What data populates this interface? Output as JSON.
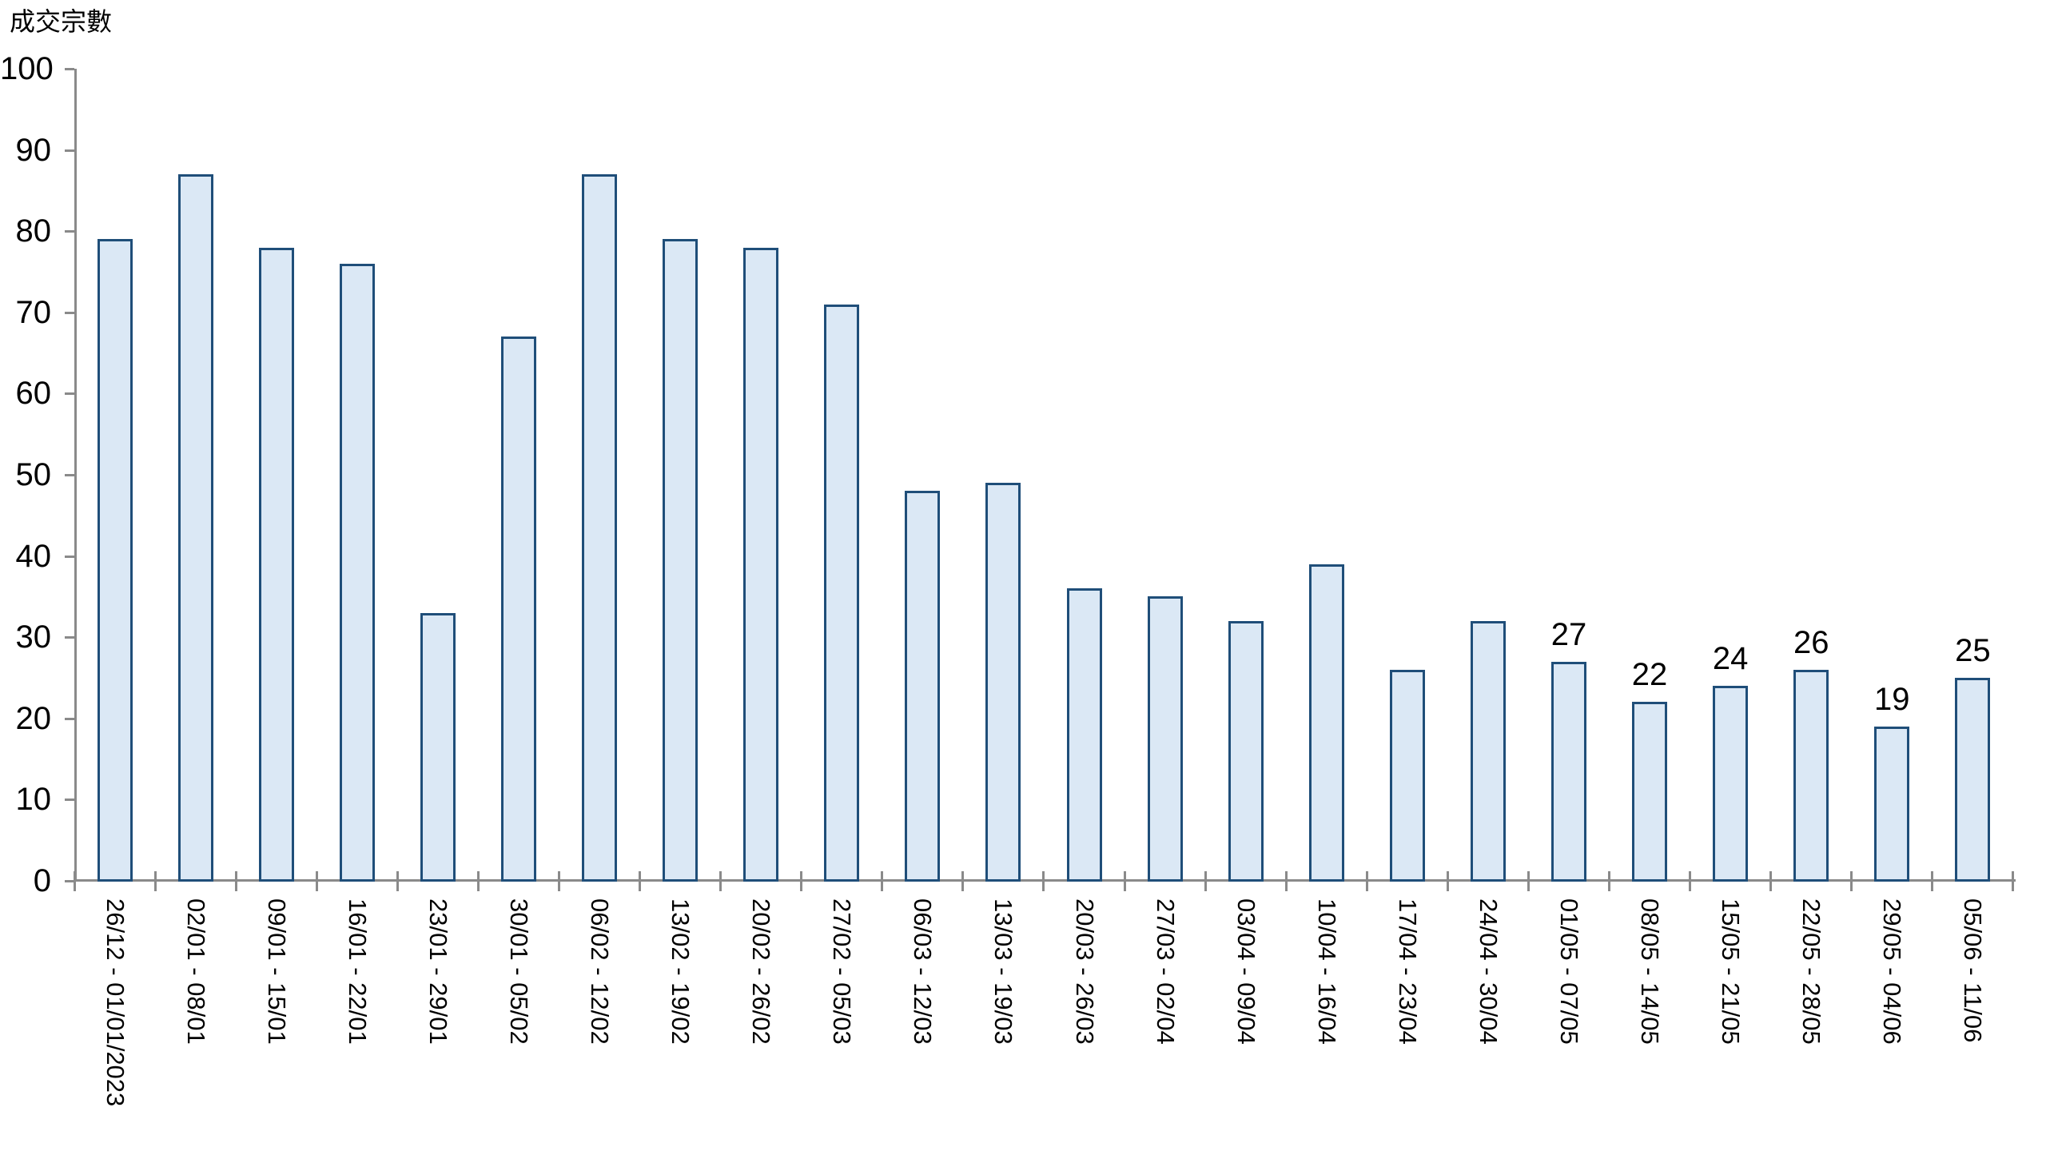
{
  "title": "成交宗數",
  "chart_data": {
    "type": "bar",
    "title": "成交宗數",
    "xlabel": "",
    "ylabel": "成交宗數",
    "ylim": [
      0,
      100
    ],
    "ytick_step": 10,
    "yticks": [
      0,
      10,
      20,
      30,
      40,
      50,
      60,
      70,
      80,
      90,
      100
    ],
    "grid": false,
    "legend": null,
    "categories": [
      "26/12 - 01/01/2023",
      "02/01 - 08/01",
      "09/01 - 15/01",
      "16/01 - 22/01",
      "23/01 - 29/01",
      "30/01 - 05/02",
      "06/02 - 12/02",
      "13/02 - 19/02",
      "20/02 - 26/02",
      "27/02 - 05/03",
      "06/03 - 12/03",
      "13/03 - 19/03",
      "20/03 - 26/03",
      "27/03 - 02/04",
      "03/04 - 09/04",
      "10/04 - 16/04",
      "17/04 - 23/04",
      "24/04 - 30/04",
      "01/05 - 07/05",
      "08/05 - 14/05",
      "15/05 - 21/05",
      "22/05 - 28/05",
      "29/05 - 04/06",
      "05/06 - 11/06"
    ],
    "values": [
      79,
      87,
      78,
      76,
      33,
      67,
      87,
      79,
      78,
      71,
      48,
      49,
      36,
      35,
      32,
      39,
      26,
      32,
      27,
      22,
      24,
      26,
      19,
      25
    ],
    "data_labels": [
      null,
      null,
      null,
      null,
      null,
      null,
      null,
      null,
      null,
      null,
      null,
      null,
      null,
      null,
      null,
      null,
      null,
      null,
      "27",
      "22",
      "24",
      "26",
      "19",
      "25"
    ],
    "colors": {
      "bar_fill": "#dbe8f5",
      "bar_border": "#1f4e79",
      "axis": "#8a8a8a",
      "text": "#000000",
      "background": "#ffffff"
    }
  }
}
